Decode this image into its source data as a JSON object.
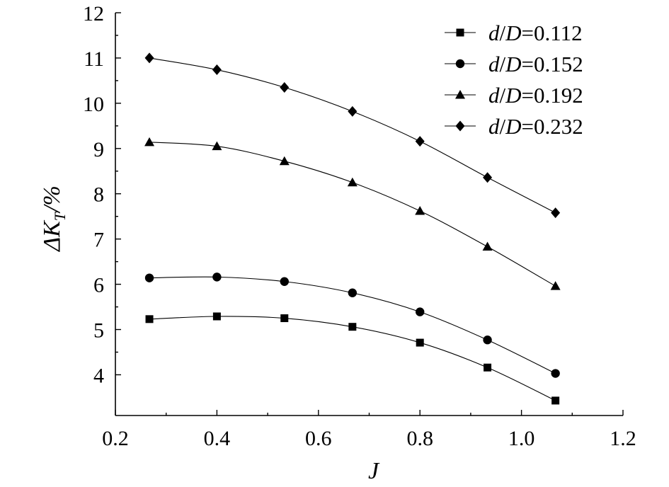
{
  "chart_data": {
    "type": "line",
    "x": [
      0.267,
      0.4,
      0.533,
      0.667,
      0.8,
      0.933,
      1.067
    ],
    "series": [
      {
        "name": "d/D=0.112",
        "marker": "square",
        "values": [
          5.23,
          5.29,
          5.25,
          5.06,
          4.71,
          4.16,
          3.43
        ]
      },
      {
        "name": "d/D=0.152",
        "marker": "circle",
        "values": [
          6.14,
          6.16,
          6.06,
          5.81,
          5.39,
          4.77,
          4.03
        ]
      },
      {
        "name": "d/D=0.192",
        "marker": "triangle",
        "values": [
          9.14,
          9.05,
          8.72,
          8.25,
          7.62,
          6.83,
          5.96
        ]
      },
      {
        "name": "d/D=0.232",
        "marker": "diamond",
        "values": [
          11.0,
          10.74,
          10.35,
          9.82,
          9.16,
          8.36,
          7.58
        ]
      }
    ],
    "xlabel": "J",
    "ylabel": "ΔK_T/%",
    "xlim": [
      0.2,
      1.2
    ],
    "ylim": [
      3.1,
      12
    ],
    "xticks": [
      "0.2",
      "0.4",
      "0.6",
      "0.8",
      "1.0",
      "1.2"
    ],
    "yticks": [
      "4",
      "5",
      "6",
      "7",
      "8",
      "9",
      "10",
      "11",
      "12"
    ],
    "grid": false,
    "legend_position": "top-right",
    "color": "#000000"
  }
}
